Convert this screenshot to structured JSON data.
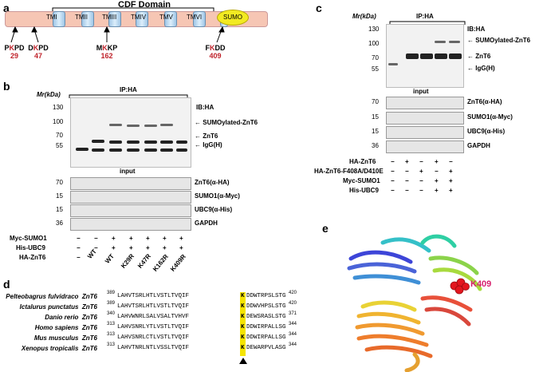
{
  "panel_a": {
    "label": "a",
    "domain_title": "CDF Domain",
    "tm": [
      "TMI",
      "TMII",
      "TMIII",
      "TMIV",
      "TMV",
      "TMVI"
    ],
    "sumo": "SUMO",
    "sites": [
      {
        "left": "P",
        "k": "K",
        "right": "PD",
        "num": "29"
      },
      {
        "left": "D",
        "k": "K",
        "right": "PD",
        "num": "47"
      },
      {
        "left": "M",
        "k": "K",
        "right": "KP",
        "num": "162"
      },
      {
        "left": "F",
        "k": "K",
        "right": "DD",
        "num": "409"
      }
    ]
  },
  "panel_b": {
    "label": "b",
    "mr": "Mr(kDa)",
    "ip": "IP:HA",
    "ib": "IB:HA",
    "markers_top": [
      "130",
      "100",
      "70",
      "55"
    ],
    "anno_top": [
      "SUMOylated-ZnT6",
      "ZnT6",
      "IgG(H)"
    ],
    "input": "input",
    "markers_input": [
      "70",
      "15",
      "15",
      "36"
    ],
    "rows_input": [
      "ZnT6(α-HA)",
      "SUMO1(α-Myc)",
      "UBC9(α-His)",
      "GAPDH"
    ],
    "table_rows": [
      {
        "label": "Myc-SUMO1",
        "vals": [
          "−",
          "−",
          "+",
          "+",
          "+",
          "+",
          "+"
        ]
      },
      {
        "label": "His-UBC9",
        "vals": [
          "−",
          "−",
          "+",
          "+",
          "+",
          "+",
          "+"
        ]
      },
      {
        "label": "HA-ZnT6",
        "vals": [
          "−",
          "WT",
          "WT",
          "K29R",
          "K47R",
          "K162R",
          "K409R"
        ]
      }
    ]
  },
  "panel_c": {
    "label": "c",
    "mr": "Mr(kDa)",
    "ip": "IP:HA",
    "ib": "IB:HA",
    "markers_top": [
      "130",
      "100",
      "70",
      "55"
    ],
    "anno_top": [
      "SUMOylated-ZnT6",
      "ZnT6",
      "IgG(H)"
    ],
    "input": "input",
    "markers_input": [
      "70",
      "15",
      "15",
      "36"
    ],
    "rows_input": [
      "ZnT6(α-HA)",
      "SUMO1(α-Myc)",
      "UBC9(α-His)",
      "GAPDH"
    ],
    "table_rows": [
      {
        "label": "HA-ZnT6",
        "vals": [
          "−",
          "+",
          "−",
          "+",
          "−"
        ]
      },
      {
        "label": "HA-ZnT6-F408A/D410E",
        "vals": [
          "−",
          "−",
          "+",
          "−",
          "+"
        ]
      },
      {
        "label": "Myc-SUMO1",
        "vals": [
          "−",
          "−",
          "−",
          "+",
          "+"
        ]
      },
      {
        "label": "His-UBC9",
        "vals": [
          "−",
          "−",
          "−",
          "+",
          "+"
        ]
      }
    ]
  },
  "panel_d": {
    "label": "d",
    "rows": [
      {
        "species": "Pelteobagrus fulvidraco",
        "gene": "ZnT6",
        "start": "389",
        "seq_l": "LAHVTSRLHTLVSTLTVQIF",
        "k": "K",
        "seq_r": "DDWTRPSLSTG",
        "end": "420"
      },
      {
        "species": "Ictalurus punctatus",
        "gene": "ZnT6",
        "start": "389",
        "seq_l": "LAHVTSRLHTLVSTLTVQIF",
        "k": "K",
        "seq_r": "DDWVHPSLSTG",
        "end": "420"
      },
      {
        "species": "Danio rerio",
        "gene": "ZnT6",
        "start": "340",
        "seq_l": "LAHVWNRLSALVSALTVHVF",
        "k": "K",
        "seq_r": "DEWSRASLSTG",
        "end": "371"
      },
      {
        "species": "Homo sapiens",
        "gene": "ZnT6",
        "start": "313",
        "seq_l": "LAHVSNRLYTLVSTLTVQIF",
        "k": "K",
        "seq_r": "DDWIRPALLSG",
        "end": "344"
      },
      {
        "species": "Mus musculus",
        "gene": "ZnT6",
        "start": "313",
        "seq_l": "LAHVSNRLCTLVSTLTVQIF",
        "k": "K",
        "seq_r": "DDWIRPALLSG",
        "end": "344"
      },
      {
        "species": "Xenopus tropicalis",
        "gene": "ZnT6",
        "start": "313",
        "seq_l": "LAHVTNRLNTLVSSLTVQIF",
        "k": "K",
        "seq_r": "DEWARPVLASG",
        "end": "344"
      }
    ]
  },
  "panel_e": {
    "label": "e",
    "site": "K409"
  }
}
